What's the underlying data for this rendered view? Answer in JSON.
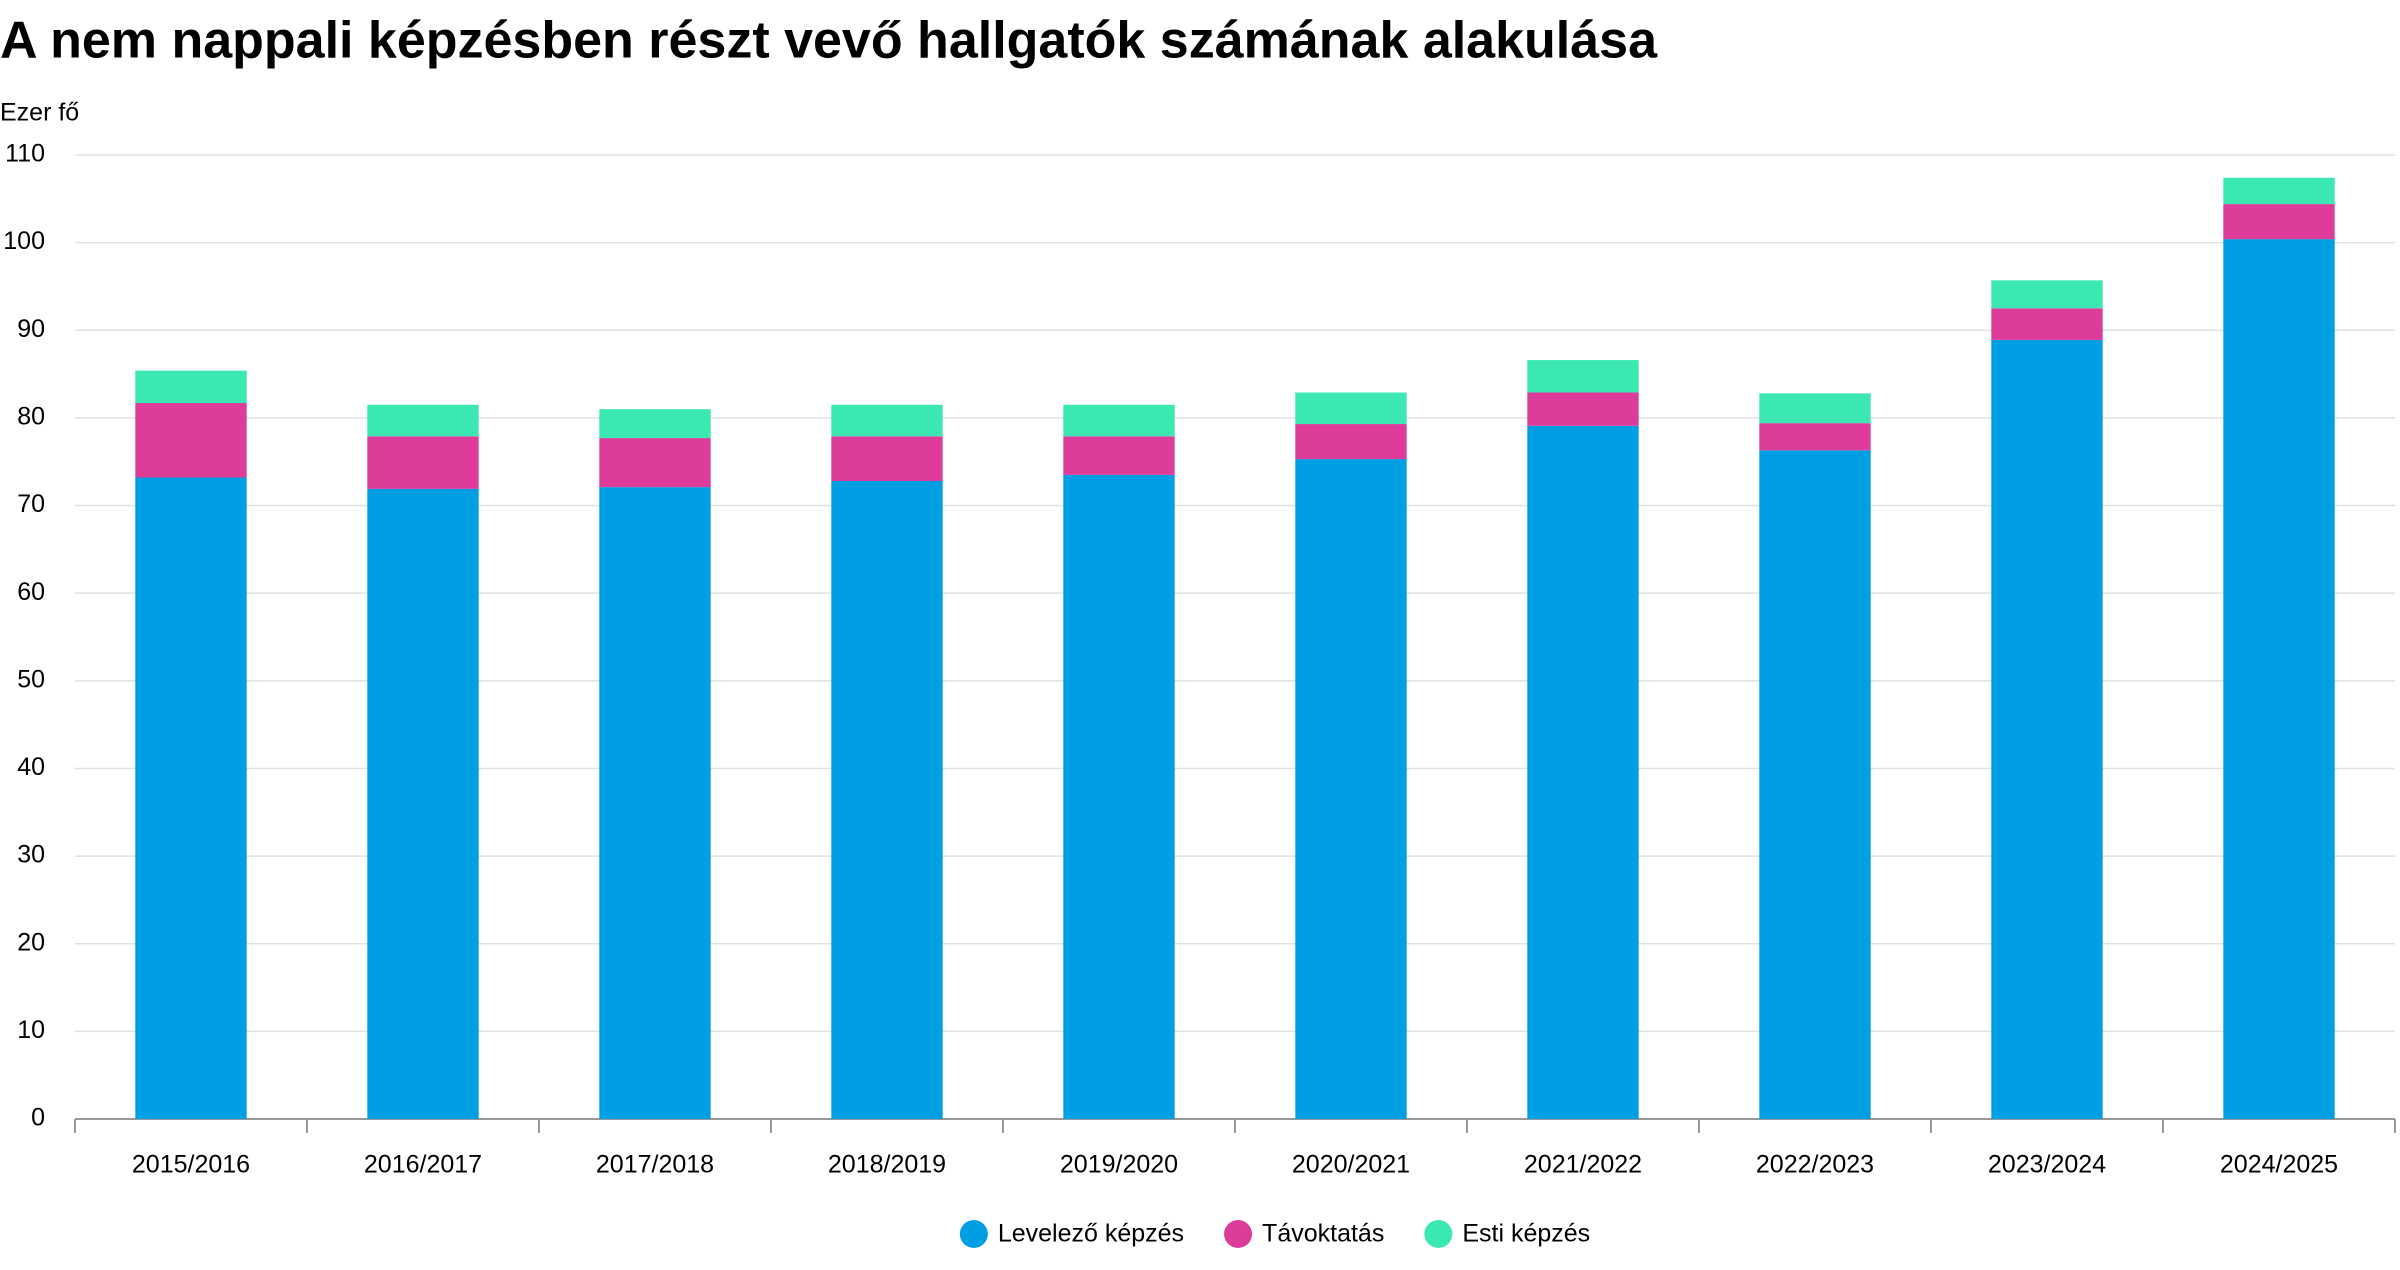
{
  "chart_data": {
    "type": "stacked-bar",
    "title": "A nem nappali képzésben részt vevő hallgatók számának alakulása",
    "y_axis_label": "Ezer fő",
    "categories": [
      "2015/2016",
      "2016/2017",
      "2017/2018",
      "2018/2019",
      "2019/2020",
      "2020/2021",
      "2021/2022",
      "2022/2023",
      "2023/2024",
      "2024/2025"
    ],
    "series": [
      {
        "name": "Levelező képzés",
        "color": "#009fe3",
        "values": [
          73.2,
          71.9,
          72.1,
          72.8,
          73.5,
          75.3,
          79.1,
          76.3,
          88.9,
          100.4
        ]
      },
      {
        "name": "Távoktatás",
        "color": "#dd3c9b",
        "values": [
          8.5,
          6.0,
          5.6,
          5.1,
          4.4,
          4.0,
          3.8,
          3.1,
          3.6,
          4.0
        ]
      },
      {
        "name": "Esti képzés",
        "color": "#3ce8b1",
        "values": [
          3.7,
          3.6,
          3.3,
          3.6,
          3.6,
          3.6,
          3.7,
          3.4,
          3.2,
          3.0
        ]
      }
    ],
    "ylim": [
      0,
      110
    ],
    "yticks": [
      0,
      10,
      20,
      30,
      40,
      50,
      60,
      70,
      80,
      90,
      100,
      110
    ],
    "grid": true,
    "legend": "bottom"
  }
}
